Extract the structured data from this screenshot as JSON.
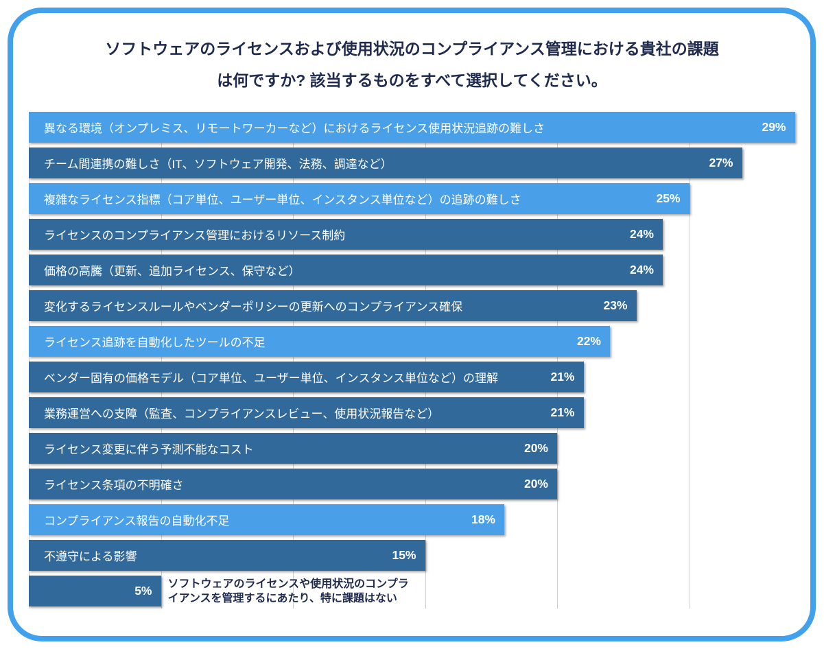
{
  "card": {
    "border_color": "#42A1EC",
    "background_color": "#FFFFFF"
  },
  "chart_data": {
    "type": "bar",
    "orientation": "horizontal",
    "title_line1": "ソフトウェアのライセンスおよび使用状況のコンプライアンス管理における貴社の課題",
    "title_line2": "は何ですか? 該当するものをすべて選択してください。",
    "value_unit": "%",
    "x_axis": {
      "min": 0,
      "max": 29,
      "gridline_step": 5,
      "gridlines_percent": [
        0,
        5,
        10,
        15,
        20,
        25
      ],
      "grid_on": true,
      "tick_labels_visible": false
    },
    "legend": "none",
    "colors": {
      "light_bar": "#4AA0E8",
      "dark_bar": "#31699B",
      "bar_text": "#FFFFFF",
      "title_text": "#1F2A4C",
      "gridline": "#CFCFCF"
    },
    "bars": [
      {
        "label": "異なる環境（オンプレミス、リモートワーカーなど）におけるライセンス使用状況追跡の難しさ",
        "value": 29,
        "value_label": "29%",
        "color": "light"
      },
      {
        "label": "チーム間連携の難しさ（IT、ソフトウェア開発、法務、調達など）",
        "value": 27,
        "value_label": "27%",
        "color": "dark"
      },
      {
        "label": "複雑なライセンス指標（コア単位、ユーザー単位、インスタンス単位など）の追跡の難しさ",
        "value": 25,
        "value_label": "25%",
        "color": "light"
      },
      {
        "label": "ライセンスのコンプライアンス管理におけるリソース制約",
        "value": 24,
        "value_label": "24%",
        "color": "dark"
      },
      {
        "label": "価格の高騰（更新、追加ライセンス、保守など）",
        "value": 24,
        "value_label": "24%",
        "color": "dark"
      },
      {
        "label": "変化するライセンスルールやベンダーポリシーの更新へのコンプライアンス確保",
        "value": 23,
        "value_label": "23%",
        "color": "dark"
      },
      {
        "label": "ライセンス追跡を自動化したツールの不足",
        "value": 22,
        "value_label": "22%",
        "color": "light"
      },
      {
        "label": "ベンダー固有の価格モデル（コア単位、ユーザー単位、インスタンス単位など）の理解",
        "value": 21,
        "value_label": "21%",
        "color": "dark"
      },
      {
        "label": "業務運営への支障（監査、コンプライアンスレビュー、使用状況報告など）",
        "value": 21,
        "value_label": "21%",
        "color": "dark"
      },
      {
        "label": "ライセンス変更に伴う予測不能なコスト",
        "value": 20,
        "value_label": "20%",
        "color": "dark"
      },
      {
        "label": "ライセンス条項の不明確さ",
        "value": 20,
        "value_label": "20%",
        "color": "dark"
      },
      {
        "label": "コンプライアンス報告の自動化不足",
        "value": 18,
        "value_label": "18%",
        "color": "light"
      },
      {
        "label": "不遵守による影響",
        "value": 15,
        "value_label": "15%",
        "color": "dark"
      },
      {
        "label": "",
        "outside_label": "ソフトウェアのライセンスや使用状況のコンプライアンスを管理するにあたり、特に課題はない",
        "value": 5,
        "value_label": "5%",
        "color": "dark"
      }
    ]
  }
}
